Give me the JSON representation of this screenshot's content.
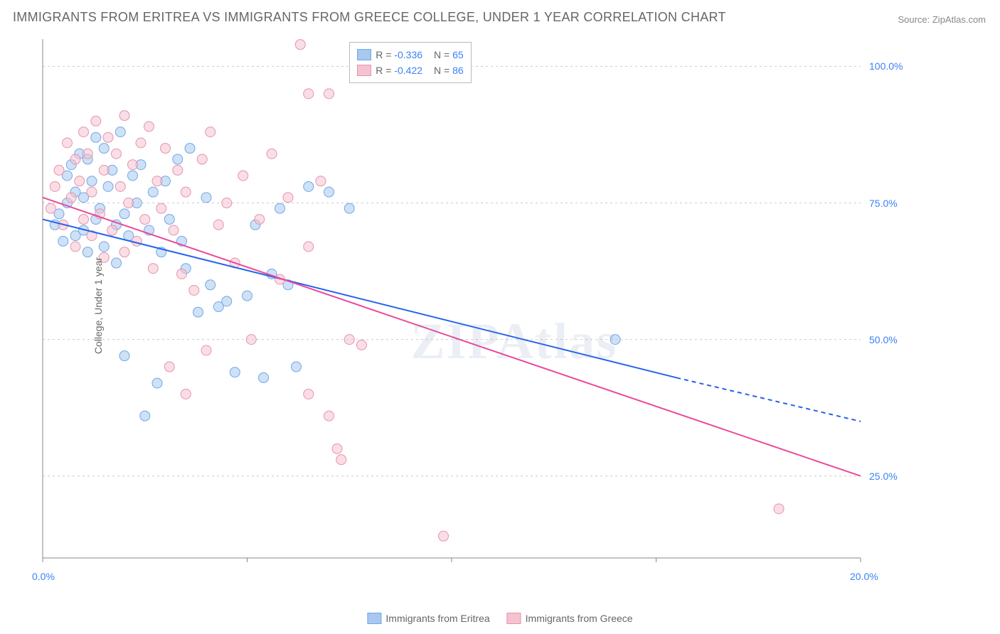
{
  "title": "IMMIGRANTS FROM ERITREA VS IMMIGRANTS FROM GREECE COLLEGE, UNDER 1 YEAR CORRELATION CHART",
  "source": "Source: ZipAtlas.com",
  "watermark": "ZIPAtlas",
  "chart": {
    "type": "scatter",
    "xlabel": "",
    "ylabel": "College, Under 1 year",
    "xlim": [
      0,
      20
    ],
    "ylim": [
      10,
      105
    ],
    "xtick_step": 5,
    "yticks": [
      25,
      50,
      75,
      100
    ],
    "xtick_labels": [
      "0.0%",
      "20.0%"
    ],
    "ytick_labels": [
      "25.0%",
      "50.0%",
      "75.0%",
      "100.0%"
    ],
    "background_color": "#ffffff",
    "grid_color": "#cccccc",
    "axis_color": "#888888",
    "marker_radius": 7,
    "marker_opacity": 0.55,
    "line_width": 2,
    "series": [
      {
        "name": "Immigrants from Eritrea",
        "color_fill": "#a8c8f0",
        "color_stroke": "#6fa8e8",
        "line_color": "#2563eb",
        "R": -0.336,
        "N": 65,
        "regression": {
          "x1": 0,
          "y1": 72,
          "x2": 15.5,
          "y2": 43,
          "x3": 20,
          "y3": 35,
          "dashed_after_x": 15.5
        },
        "points": [
          [
            0.3,
            71
          ],
          [
            0.4,
            73
          ],
          [
            0.5,
            68
          ],
          [
            0.6,
            80
          ],
          [
            0.6,
            75
          ],
          [
            0.7,
            82
          ],
          [
            0.8,
            69
          ],
          [
            0.8,
            77
          ],
          [
            0.9,
            84
          ],
          [
            1.0,
            70
          ],
          [
            1.0,
            76
          ],
          [
            1.1,
            83
          ],
          [
            1.1,
            66
          ],
          [
            1.2,
            79
          ],
          [
            1.3,
            72
          ],
          [
            1.3,
            87
          ],
          [
            1.4,
            74
          ],
          [
            1.5,
            85
          ],
          [
            1.5,
            67
          ],
          [
            1.6,
            78
          ],
          [
            1.7,
            81
          ],
          [
            1.8,
            71
          ],
          [
            1.8,
            64
          ],
          [
            1.9,
            88
          ],
          [
            2.0,
            73
          ],
          [
            2.0,
            47
          ],
          [
            2.1,
            69
          ],
          [
            2.2,
            80
          ],
          [
            2.3,
            75
          ],
          [
            2.4,
            82
          ],
          [
            2.5,
            36
          ],
          [
            2.6,
            70
          ],
          [
            2.7,
            77
          ],
          [
            2.8,
            42
          ],
          [
            2.9,
            66
          ],
          [
            3.0,
            79
          ],
          [
            3.1,
            72
          ],
          [
            3.3,
            83
          ],
          [
            3.4,
            68
          ],
          [
            3.5,
            63
          ],
          [
            3.6,
            85
          ],
          [
            3.8,
            55
          ],
          [
            4.0,
            76
          ],
          [
            4.1,
            60
          ],
          [
            4.3,
            56
          ],
          [
            4.5,
            57
          ],
          [
            4.7,
            44
          ],
          [
            5.0,
            58
          ],
          [
            5.2,
            71
          ],
          [
            5.4,
            43
          ],
          [
            5.6,
            62
          ],
          [
            5.8,
            74
          ],
          [
            6.0,
            60
          ],
          [
            6.2,
            45
          ],
          [
            6.5,
            78
          ],
          [
            7.0,
            77
          ],
          [
            7.5,
            74
          ],
          [
            14.0,
            50
          ]
        ]
      },
      {
        "name": "Immigrants from Greece",
        "color_fill": "#f4c3d0",
        "color_stroke": "#e893ab",
        "line_color": "#ec4899",
        "R": -0.422,
        "N": 86,
        "regression": {
          "x1": 0,
          "y1": 76,
          "x2": 20,
          "y2": 25,
          "dashed_after_x": 20
        },
        "points": [
          [
            0.2,
            74
          ],
          [
            0.3,
            78
          ],
          [
            0.4,
            81
          ],
          [
            0.5,
            71
          ],
          [
            0.6,
            86
          ],
          [
            0.7,
            76
          ],
          [
            0.8,
            83
          ],
          [
            0.8,
            67
          ],
          [
            0.9,
            79
          ],
          [
            1.0,
            88
          ],
          [
            1.0,
            72
          ],
          [
            1.1,
            84
          ],
          [
            1.2,
            69
          ],
          [
            1.2,
            77
          ],
          [
            1.3,
            90
          ],
          [
            1.4,
            73
          ],
          [
            1.5,
            81
          ],
          [
            1.5,
            65
          ],
          [
            1.6,
            87
          ],
          [
            1.7,
            70
          ],
          [
            1.8,
            84
          ],
          [
            1.9,
            78
          ],
          [
            2.0,
            91
          ],
          [
            2.0,
            66
          ],
          [
            2.1,
            75
          ],
          [
            2.2,
            82
          ],
          [
            2.3,
            68
          ],
          [
            2.4,
            86
          ],
          [
            2.5,
            72
          ],
          [
            2.6,
            89
          ],
          [
            2.7,
            63
          ],
          [
            2.8,
            79
          ],
          [
            2.9,
            74
          ],
          [
            3.0,
            85
          ],
          [
            3.1,
            45
          ],
          [
            3.2,
            70
          ],
          [
            3.3,
            81
          ],
          [
            3.4,
            62
          ],
          [
            3.5,
            77
          ],
          [
            3.5,
            40
          ],
          [
            3.7,
            59
          ],
          [
            3.9,
            83
          ],
          [
            4.0,
            48
          ],
          [
            4.1,
            88
          ],
          [
            4.3,
            71
          ],
          [
            4.5,
            75
          ],
          [
            4.7,
            64
          ],
          [
            4.9,
            80
          ],
          [
            5.1,
            50
          ],
          [
            5.3,
            72
          ],
          [
            5.6,
            84
          ],
          [
            5.8,
            61
          ],
          [
            6.0,
            76
          ],
          [
            6.3,
            104
          ],
          [
            6.5,
            67
          ],
          [
            6.8,
            79
          ],
          [
            6.5,
            95
          ],
          [
            7.0,
            95
          ],
          [
            7.2,
            30
          ],
          [
            7.5,
            50
          ],
          [
            7.8,
            49
          ],
          [
            6.5,
            40
          ],
          [
            7.0,
            36
          ],
          [
            7.3,
            28
          ],
          [
            9.8,
            14
          ],
          [
            18.0,
            19
          ]
        ]
      }
    ],
    "legend_top": {
      "R_label": "R =",
      "N_label": "N ="
    },
    "title_fontsize": 18,
    "label_fontsize": 14
  }
}
